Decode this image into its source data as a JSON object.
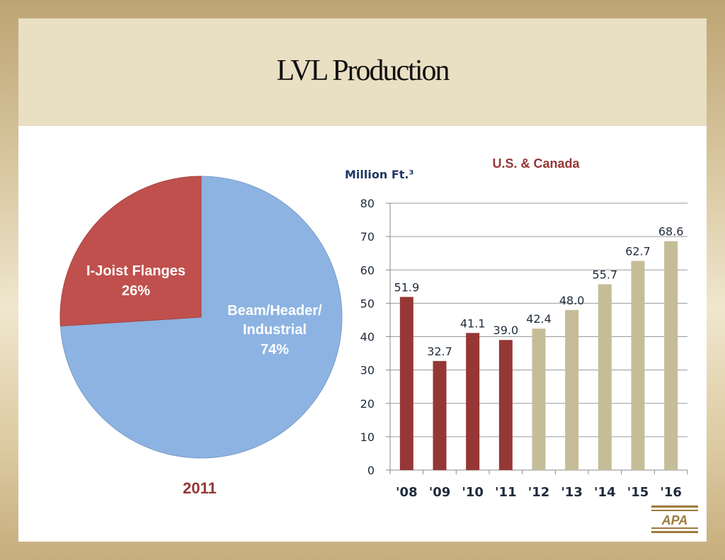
{
  "slide": {
    "title": "LVL Production"
  },
  "chart_data": [
    {
      "type": "pie",
      "subtitle": "2011",
      "slices": [
        {
          "label": "Beam/Header/ Industrial",
          "value": 74,
          "value_text": "74%",
          "color": "#8db3e2"
        },
        {
          "label": "I-Joist Flanges",
          "value": 26,
          "value_text": "26%",
          "color": "#c0504d"
        }
      ],
      "label_color": "#ffffff",
      "subtitle_color": "#953735"
    },
    {
      "type": "bar",
      "title": "U.S. & Canada",
      "ylabel": "Million Ft.³",
      "categories": [
        "'08",
        "'09",
        "'10",
        "'11",
        "'12",
        "'13",
        "'14",
        "'15",
        "'16"
      ],
      "values": [
        51.9,
        32.7,
        41.1,
        39.0,
        42.4,
        48.0,
        55.7,
        62.7,
        68.6
      ],
      "value_labels": [
        "51.9",
        "32.7",
        "41.1",
        "39.0",
        "42.4",
        "48.0",
        "55.7",
        "62.7",
        "68.6"
      ],
      "bar_colors": [
        "#953735",
        "#953735",
        "#953735",
        "#953735",
        "#c4bd97",
        "#c4bd97",
        "#c4bd97",
        "#c4bd97",
        "#c4bd97"
      ],
      "ylim": [
        0,
        80
      ],
      "yticks": [
        0,
        10,
        20,
        30,
        40,
        50,
        60,
        70,
        80
      ],
      "grid": true,
      "title_color": "#953735",
      "ylabel_color": "#1f3864"
    }
  ],
  "logo": {
    "text": "APA",
    "color": "#9c7b3c"
  }
}
